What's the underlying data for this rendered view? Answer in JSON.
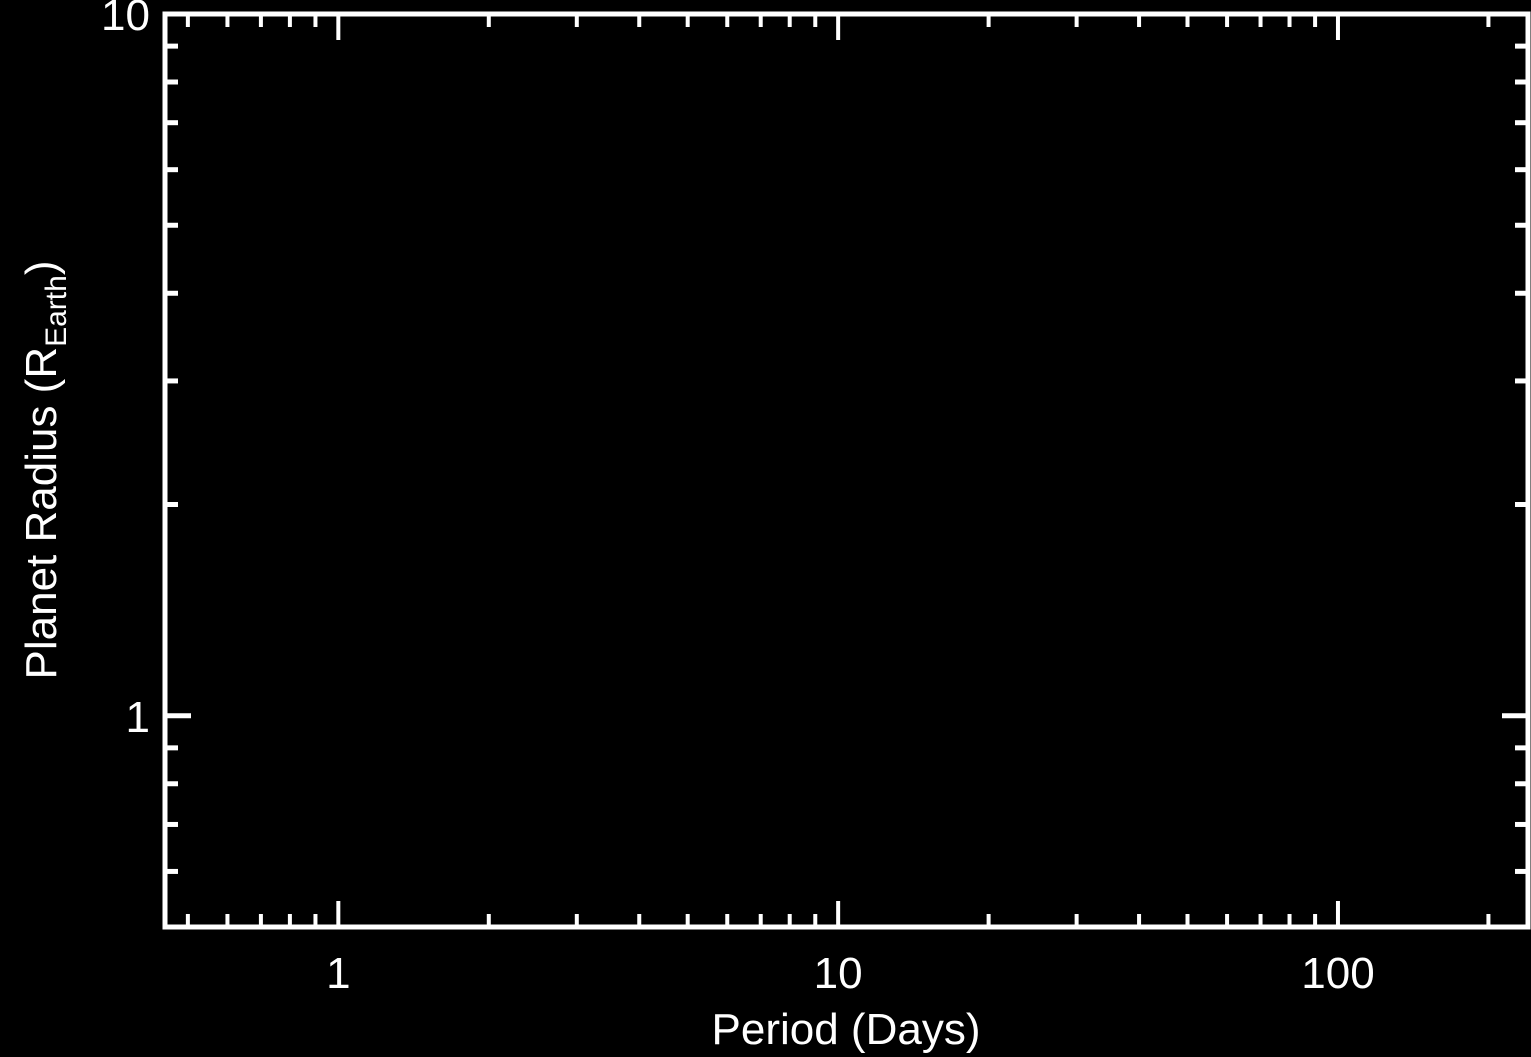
{
  "chart_data": {
    "type": "scatter",
    "title": "",
    "x_scale": "log",
    "y_scale": "log",
    "xlim": [
      0.45,
      240
    ],
    "ylim": [
      0.5,
      10
    ],
    "x_ticks": [
      {
        "value": 1,
        "label": "1"
      },
      {
        "value": 10,
        "label": "10"
      },
      {
        "value": 100,
        "label": "100"
      }
    ],
    "y_ticks": [
      {
        "value": 1,
        "label": "1"
      },
      {
        "value": 10,
        "label": "10"
      }
    ],
    "xlabel": "Period (Days)",
    "ylabel": {
      "text": "Planet Radius (R",
      "subscript": "Earth",
      "suffix": ")"
    },
    "series": [],
    "grid": false,
    "colors": {
      "background": "#000000",
      "foreground": "#ffffff"
    }
  }
}
